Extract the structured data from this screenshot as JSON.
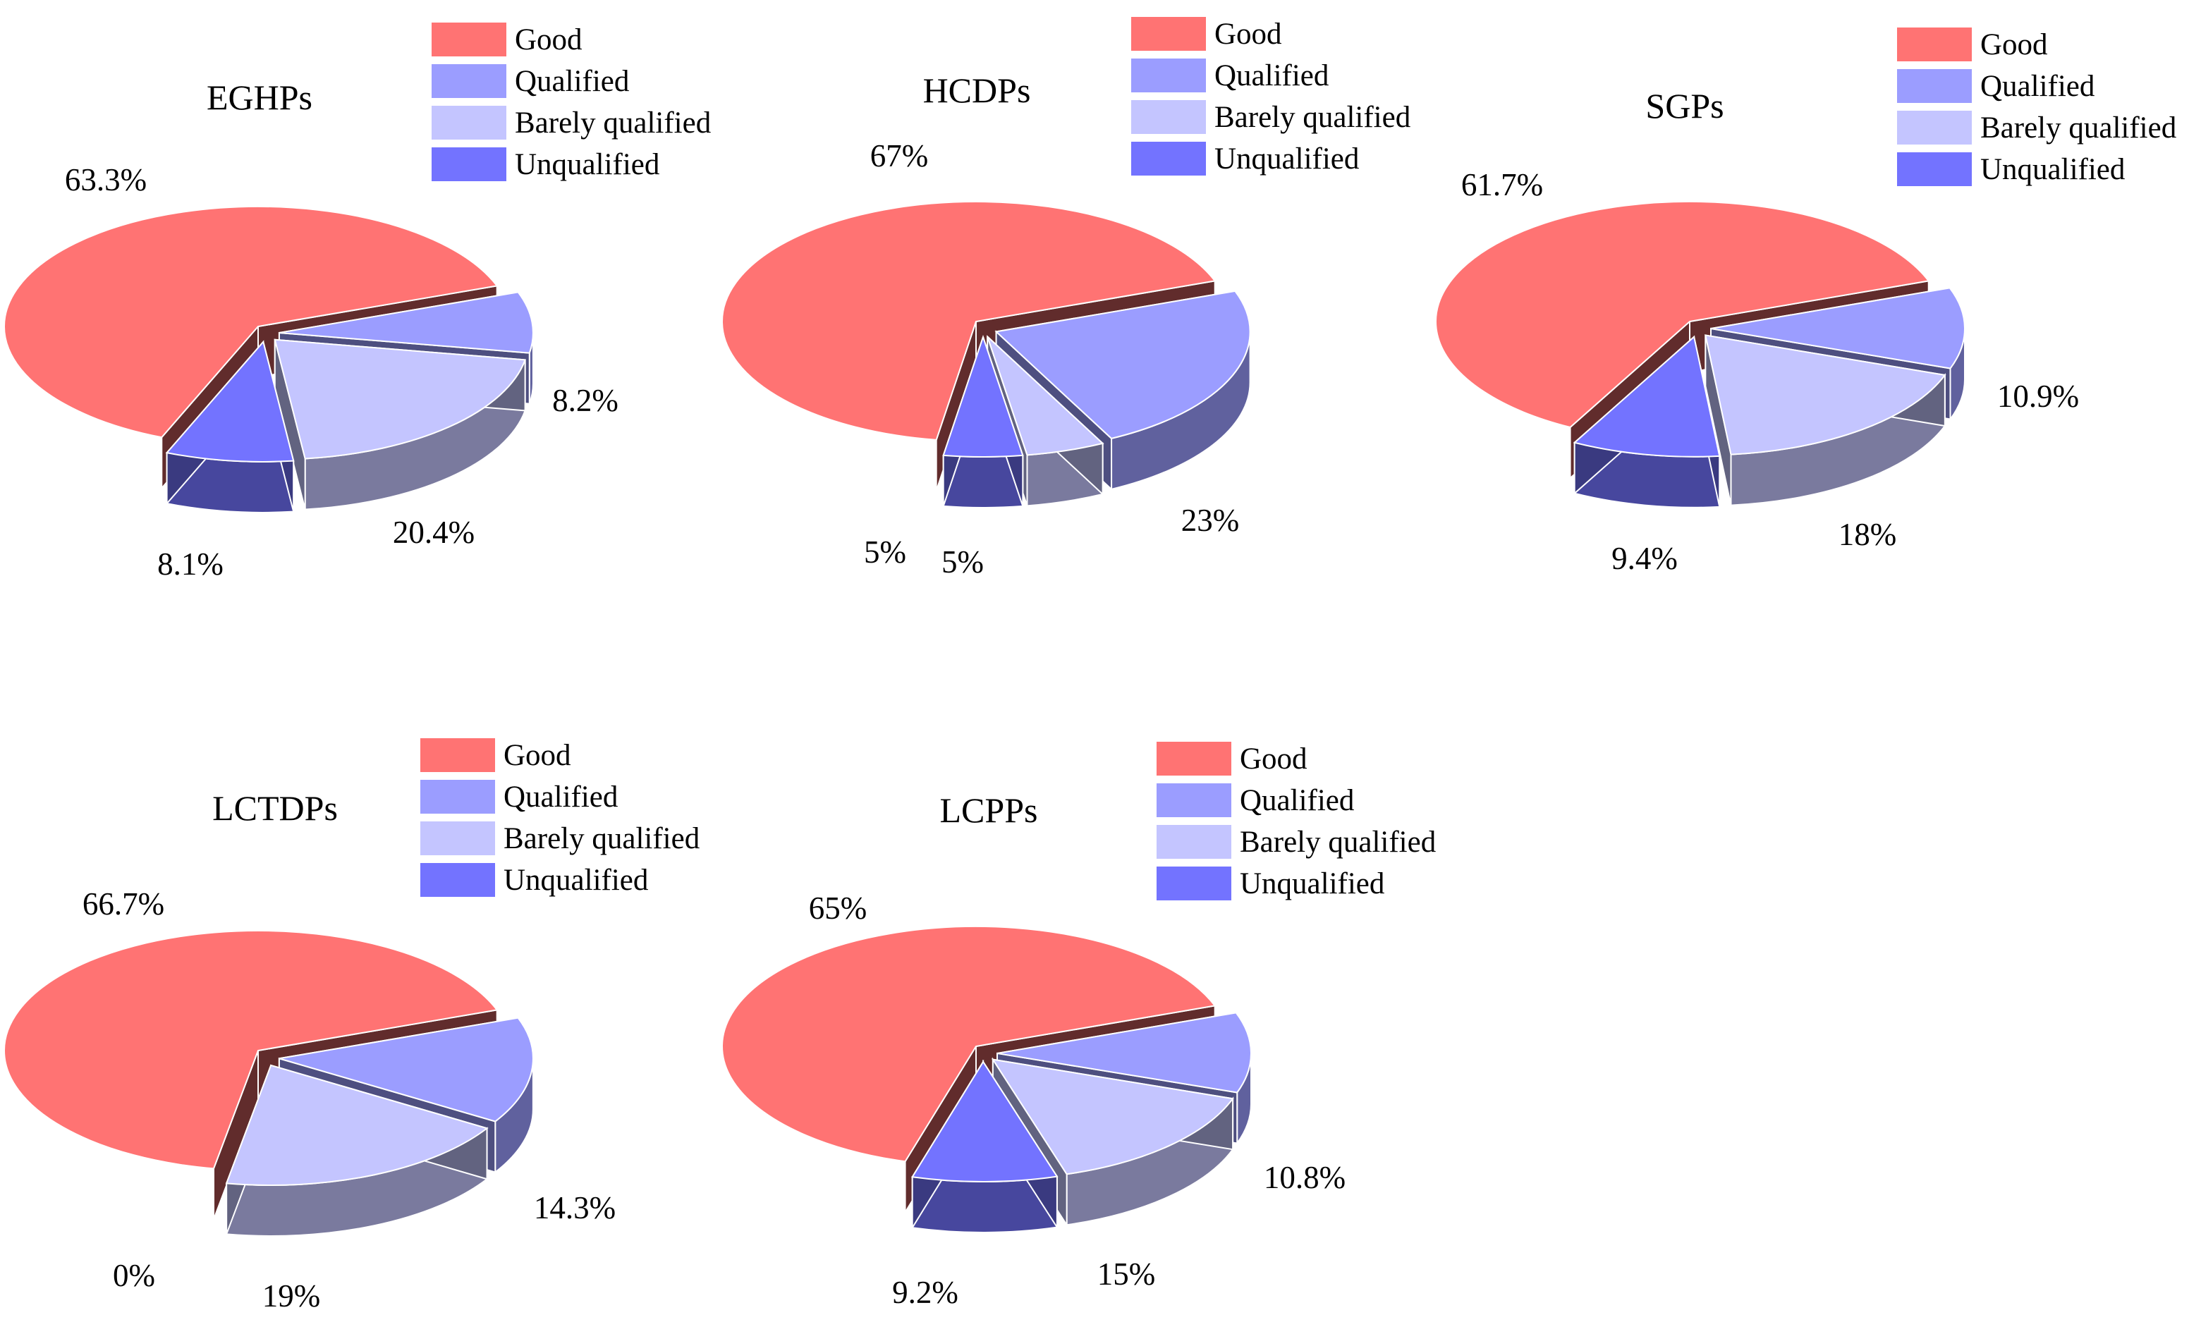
{
  "colors": {
    "good": "#ff7373",
    "qualified": "#9b9dff",
    "barely_qualified": "#c4c5ff",
    "unqualified": "#7373ff"
  },
  "legend": {
    "items": [
      {
        "key": "good",
        "label": "Good"
      },
      {
        "key": "qualified",
        "label": "Qualified"
      },
      {
        "key": "barely_qualified",
        "label": "Barely qualified"
      },
      {
        "key": "unqualified",
        "label": "Unqualified"
      }
    ]
  },
  "chart_data": [
    {
      "type": "pie",
      "title": "EGHPs",
      "categories": [
        "Good",
        "Qualified",
        "Barely qualified",
        "Unqualified"
      ],
      "values": [
        63.3,
        8.2,
        20.4,
        8.1
      ],
      "labels": [
        "63.3%",
        "8.2%",
        "20.4%",
        "8.1%"
      ]
    },
    {
      "type": "pie",
      "title": "HCDPs",
      "categories": [
        "Good",
        "Qualified",
        "Barely qualified",
        "Unqualified"
      ],
      "values": [
        67,
        23,
        5,
        5
      ],
      "labels": [
        "67%",
        "23%",
        "5%",
        "5%"
      ]
    },
    {
      "type": "pie",
      "title": "SGPs",
      "categories": [
        "Good",
        "Qualified",
        "Barely qualified",
        "Unqualified"
      ],
      "values": [
        61.7,
        10.9,
        18,
        9.4
      ],
      "labels": [
        "61.7%",
        "10.9%",
        "18%",
        "9.4%"
      ]
    },
    {
      "type": "pie",
      "title": "LCTDPs",
      "categories": [
        "Good",
        "Qualified",
        "Barely qualified",
        "Unqualified"
      ],
      "values": [
        66.7,
        14.3,
        19,
        0
      ],
      "labels": [
        "66.7%",
        "14.3%",
        "19%",
        "0%"
      ]
    },
    {
      "type": "pie",
      "title": "LCPPs",
      "categories": [
        "Good",
        "Qualified",
        "Barely qualified",
        "Unqualified"
      ],
      "values": [
        65,
        10.8,
        15,
        9.2
      ],
      "labels": [
        "65%",
        "10.8%",
        "15%",
        "9.2%"
      ]
    }
  ]
}
